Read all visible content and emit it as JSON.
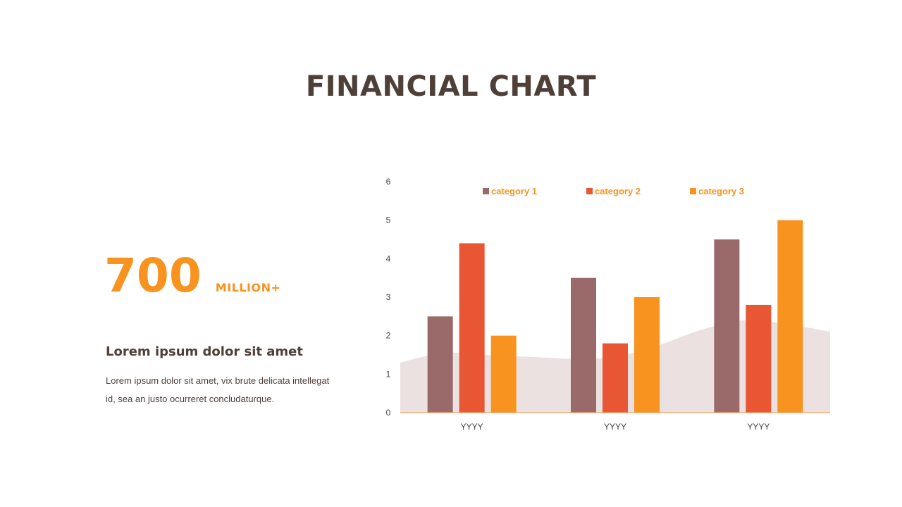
{
  "slide": {
    "title": "FINANCIAL CHART"
  },
  "stat": {
    "number": "700",
    "unit": "MILLION+"
  },
  "text_block": {
    "heading": "Lorem ipsum dolor sit amet",
    "body": "Lorem ipsum dolor sit amet, vix brute delicata intellegat id, sea an justo ocurreret concludaturque."
  },
  "colors": {
    "title": "#4e3f38",
    "accent": "#f7931e",
    "category_1": "#9a6a6a",
    "category_2": "#e85634",
    "category_3": "#f7931e",
    "background_area": "#ebe1e1",
    "axis_line": "#e8a468",
    "tick_label": "#444444"
  },
  "chart_data": {
    "type": "bar",
    "categories": [
      "YYYY",
      "YYYY",
      "YYYY"
    ],
    "series": [
      {
        "name": "category 1",
        "values": [
          2.5,
          3.5,
          4.5
        ]
      },
      {
        "name": "category 2",
        "values": [
          4.4,
          1.8,
          2.8
        ]
      },
      {
        "name": "category 3",
        "values": [
          2.0,
          3.0,
          5.0
        ]
      }
    ],
    "background_area": {
      "type": "area",
      "values": [
        1.3,
        1.55,
        1.5,
        1.45,
        1.4,
        1.45,
        1.75,
        2.15,
        2.4,
        2.3,
        2.1
      ]
    },
    "ylim": [
      0,
      6
    ],
    "yticks": [
      0,
      1,
      2,
      3,
      4,
      5,
      6
    ],
    "grid": false,
    "legend_position": "top-center",
    "title": "",
    "xlabel": "",
    "ylabel": ""
  }
}
